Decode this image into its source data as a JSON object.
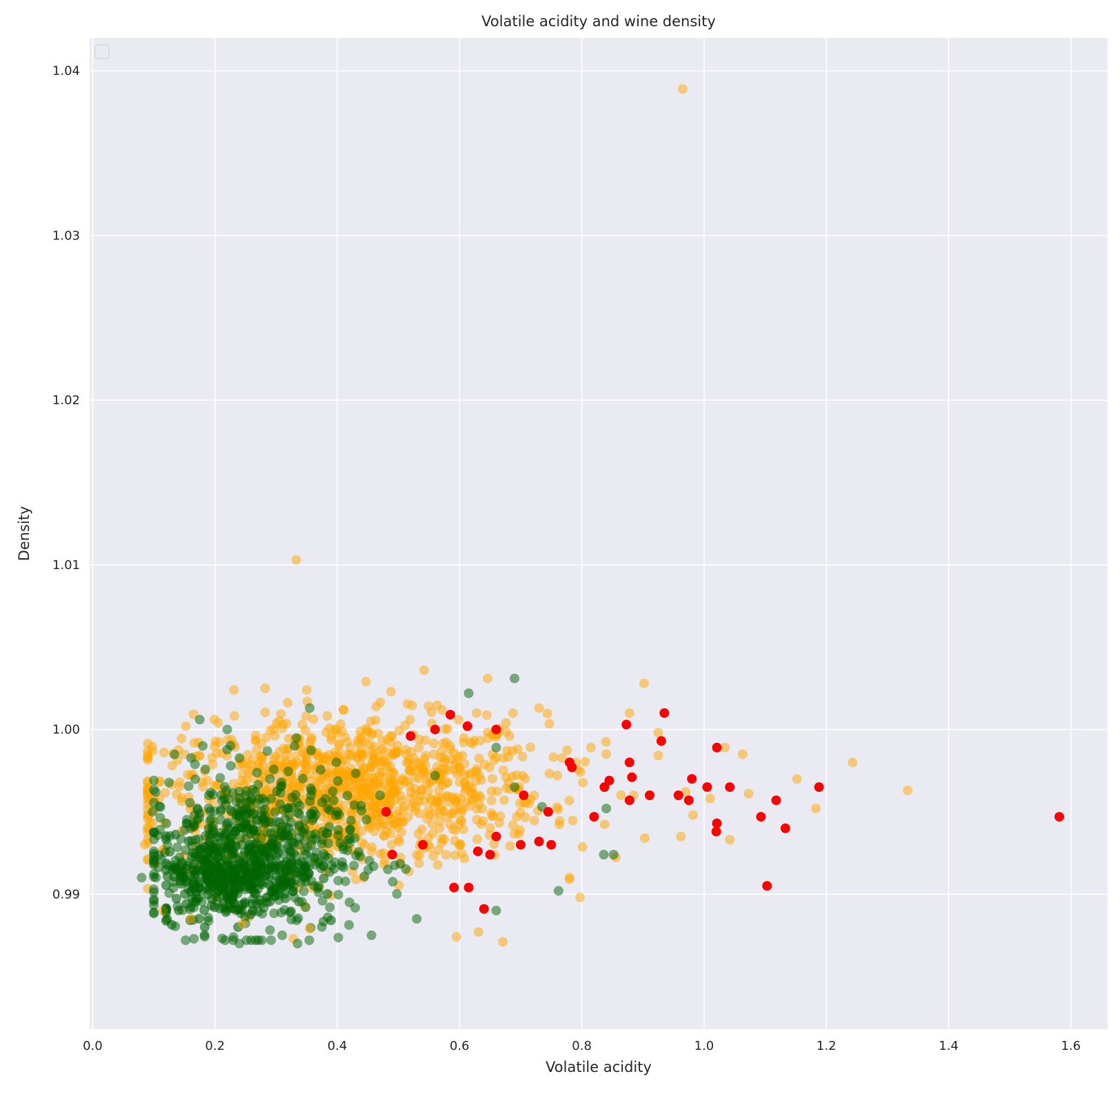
{
  "chart_data": {
    "type": "scatter",
    "title": "Volatile acidity and wine density",
    "xlabel": "Volatile acidity",
    "ylabel": "Density",
    "xlim": [
      -0.005,
      1.66
    ],
    "ylim": [
      0.9818,
      1.042
    ],
    "xticks": [
      0.0,
      0.2,
      0.4,
      0.6,
      0.8,
      1.0,
      1.2,
      1.4,
      1.6
    ],
    "xtick_labels": [
      "0.0",
      "0.2",
      "0.4",
      "0.6",
      "0.8",
      "1.0",
      "1.2",
      "1.4",
      "1.6"
    ],
    "yticks": [
      0.99,
      1.0,
      1.01,
      1.02,
      1.03,
      1.04
    ],
    "ytick_labels": [
      "0.99",
      "1.00",
      "1.01",
      "1.02",
      "1.03",
      "1.04"
    ],
    "grid": true,
    "legend": "top-left (empty)",
    "colors": {
      "background": "#EAEAF2",
      "grid": "#FFFFFF",
      "orange": "#FFA500",
      "green": "#006400",
      "red": "#FF0000"
    },
    "series": [
      {
        "color": "orange",
        "alpha": 0.5,
        "points": [
          [
            0.965,
            1.0389
          ],
          [
            0.333,
            1.0103
          ],
          [
            0.542,
            1.0036
          ],
          [
            0.447,
            1.0029
          ],
          [
            0.282,
            1.0025
          ],
          [
            0.646,
            1.0031
          ],
          [
            0.902,
            1.0028
          ],
          [
            0.231,
            1.0024
          ],
          [
            0.488,
            1.0023
          ],
          [
            0.351,
            1.0017
          ],
          [
            0.628,
            1.001
          ],
          [
            0.73,
            1.0013
          ],
          [
            0.878,
            1.001
          ],
          [
            0.925,
            0.9998
          ],
          [
            1.034,
            0.9989
          ],
          [
            1.063,
            0.9985
          ],
          [
            1.152,
            0.997
          ],
          [
            1.243,
            0.998
          ],
          [
            1.183,
            0.9952
          ],
          [
            1.333,
            0.9963
          ],
          [
            0.098,
            0.9943
          ],
          [
            0.085,
            0.993
          ],
          [
            0.115,
            0.989
          ],
          [
            0.16,
            0.9885
          ],
          [
            0.245,
            0.9882
          ],
          [
            0.355,
            0.9879
          ],
          [
            0.595,
            0.9874
          ],
          [
            0.671,
            0.9871
          ],
          [
            0.631,
            0.9877
          ],
          [
            0.78,
            0.991
          ],
          [
            0.797,
            0.9898
          ],
          [
            0.885,
            0.996
          ],
          [
            0.97,
            0.9962
          ],
          [
            0.982,
            0.9948
          ],
          [
            1.01,
            0.9958
          ],
          [
            0.903,
            0.9934
          ],
          [
            0.962,
            0.9935
          ],
          [
            1.042,
            0.9933
          ],
          [
            1.073,
            0.9961
          ],
          [
            0.815,
            0.9989
          ],
          [
            0.84,
            0.9985
          ],
          [
            0.79,
            0.998
          ],
          [
            0.76,
            0.9972
          ],
          [
            0.695,
            0.9988
          ],
          [
            0.585,
            0.999
          ],
          [
            0.455,
            1.0005
          ],
          [
            0.41,
            1.0012
          ],
          [
            0.305,
            1.0005
          ],
          [
            0.205,
            1.0004
          ],
          [
            0.13,
            0.9978
          ]
        ]
      },
      {
        "color": "green",
        "alpha": 0.5,
        "points": [
          [
            0.69,
            1.0031
          ],
          [
            0.615,
            1.0022
          ],
          [
            0.355,
            1.0013
          ],
          [
            0.175,
            1.0006
          ],
          [
            0.18,
            0.999
          ],
          [
            0.103,
            0.9962
          ],
          [
            0.098,
            0.995
          ],
          [
            0.08,
            0.991
          ],
          [
            0.12,
            0.989
          ],
          [
            0.24,
            0.987
          ],
          [
            0.335,
            0.987
          ],
          [
            0.31,
            0.9875
          ],
          [
            0.456,
            0.9875
          ],
          [
            0.53,
            0.9885
          ],
          [
            0.66,
            0.989
          ],
          [
            0.762,
            0.9902
          ],
          [
            0.836,
            0.9924
          ],
          [
            0.852,
            0.9924
          ],
          [
            0.84,
            0.9952
          ],
          [
            0.735,
            0.9953
          ],
          [
            0.69,
            0.9965
          ],
          [
            0.66,
            0.9989
          ],
          [
            0.56,
            0.9972
          ],
          [
            0.47,
            0.996
          ],
          [
            0.4,
            0.995
          ],
          [
            0.3,
            0.992
          ],
          [
            0.25,
            0.991
          ],
          [
            0.2,
            0.993
          ],
          [
            0.16,
            0.994
          ],
          [
            0.22,
            1.0
          ],
          [
            0.33,
            0.999
          ],
          [
            0.29,
            0.997
          ],
          [
            0.19,
            0.996
          ],
          [
            0.37,
            0.9905
          ],
          [
            0.42,
            0.9895
          ]
        ]
      },
      {
        "color": "red",
        "alpha": 1.0,
        "points": [
          [
            1.581,
            0.9947
          ],
          [
            1.188,
            0.9965
          ],
          [
            1.133,
            0.994
          ],
          [
            1.103,
            0.9905
          ],
          [
            1.118,
            0.9957
          ],
          [
            1.093,
            0.9947
          ],
          [
            1.042,
            0.9965
          ],
          [
            1.021,
            0.9943
          ],
          [
            1.02,
            0.9938
          ],
          [
            1.021,
            0.9989
          ],
          [
            0.935,
            1.001
          ],
          [
            0.93,
            0.9993
          ],
          [
            0.873,
            1.0003
          ],
          [
            0.878,
            0.998
          ],
          [
            0.882,
            0.9971
          ],
          [
            0.845,
            0.9969
          ],
          [
            0.837,
            0.9965
          ],
          [
            0.82,
            0.9947
          ],
          [
            0.878,
            0.9957
          ],
          [
            0.911,
            0.996
          ],
          [
            0.958,
            0.996
          ],
          [
            0.975,
            0.9957
          ],
          [
            0.98,
            0.997
          ],
          [
            1.005,
            0.9965
          ],
          [
            0.784,
            0.9977
          ],
          [
            0.78,
            0.998
          ],
          [
            0.745,
            0.995
          ],
          [
            0.73,
            0.9932
          ],
          [
            0.75,
            0.993
          ],
          [
            0.7,
            0.993
          ],
          [
            0.66,
            0.9935
          ],
          [
            0.65,
            0.9924
          ],
          [
            0.63,
            0.9926
          ],
          [
            0.615,
            0.9904
          ],
          [
            0.591,
            0.9904
          ],
          [
            0.64,
            0.9891
          ],
          [
            0.585,
            1.0009
          ],
          [
            0.56,
            1.0
          ],
          [
            0.52,
            0.9996
          ],
          [
            0.613,
            1.0002
          ],
          [
            0.66,
            1.0
          ],
          [
            0.54,
            0.993
          ],
          [
            0.49,
            0.9924
          ],
          [
            0.48,
            0.995
          ],
          [
            0.705,
            0.996
          ]
        ]
      }
    ]
  }
}
